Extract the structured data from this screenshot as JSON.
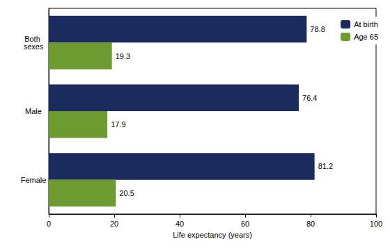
{
  "chart_data": {
    "type": "bar",
    "orientation": "horizontal",
    "categories": [
      "Both sexes",
      "Male",
      "Female"
    ],
    "series": [
      {
        "name": "At birth",
        "color": "#1c2b5e",
        "values": [
          78.8,
          76.4,
          81.2
        ]
      },
      {
        "name": "Age 65",
        "color": "#6e9a32",
        "values": [
          19.3,
          17.9,
          20.5
        ]
      }
    ],
    "x_label": "Life expectancy (years)",
    "xlim": [
      0,
      100
    ],
    "xticks": [
      0,
      20,
      40,
      60,
      80,
      100
    ],
    "grid": false,
    "legend": "top-right",
    "data_labels": true
  }
}
